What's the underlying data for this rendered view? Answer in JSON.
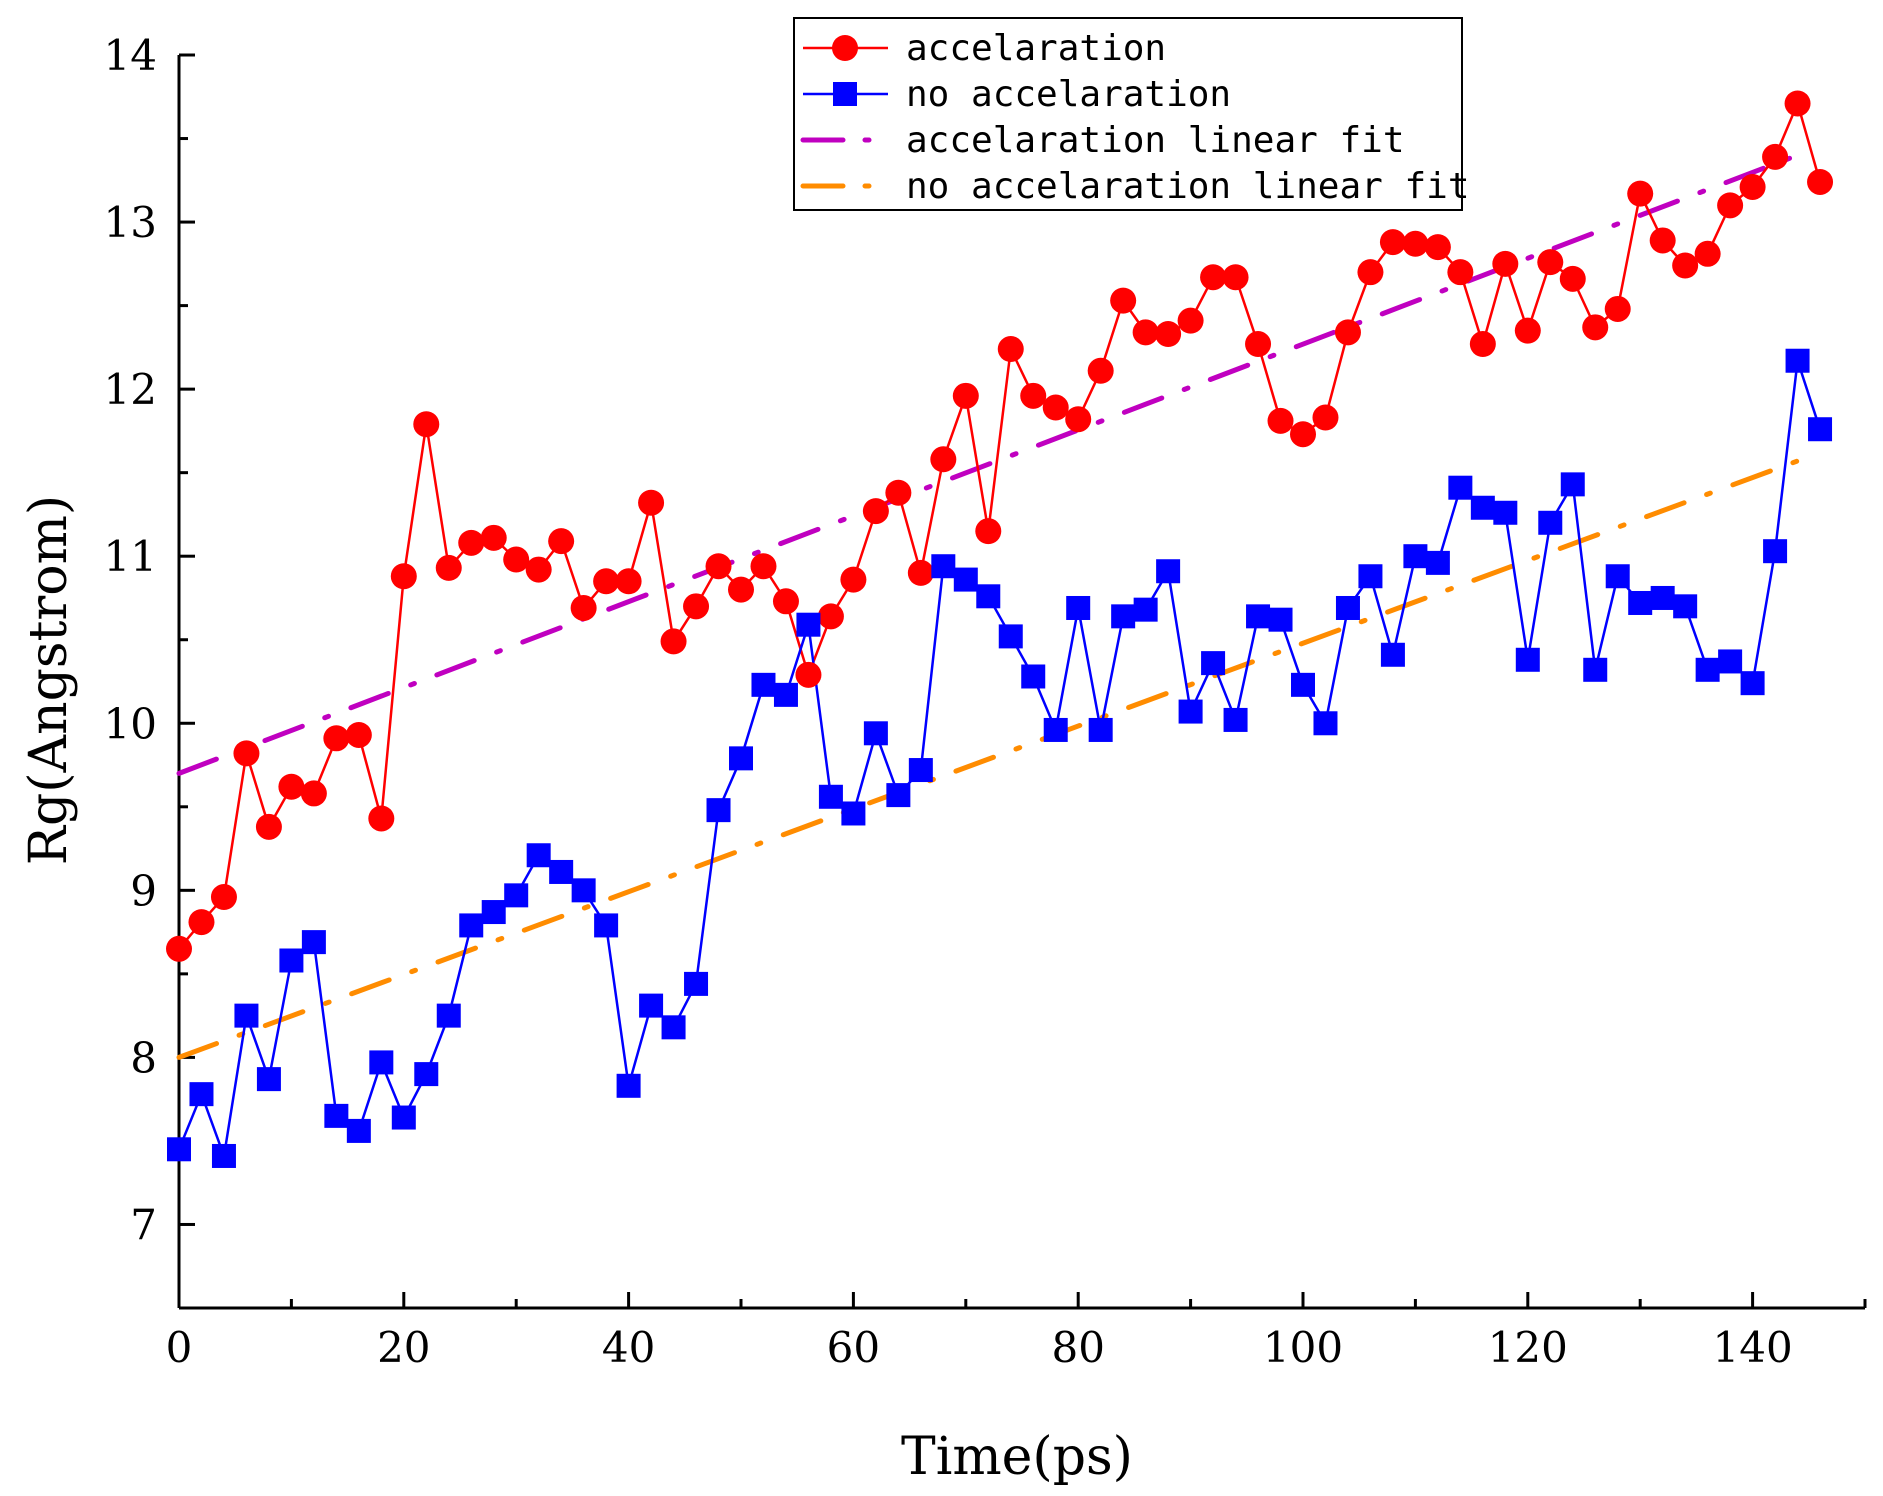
{
  "chart_data": {
    "type": "line",
    "title": "",
    "xlabel": "Time(ps)",
    "ylabel": "Rg(Angstrom)",
    "xlim": [
      0,
      150
    ],
    "ylim": [
      6.5,
      14
    ],
    "x_ticks": [
      "0",
      "20",
      "40",
      "60",
      "80",
      "100",
      "120",
      "140"
    ],
    "y_ticks": [
      "7",
      "8",
      "9",
      "10",
      "11",
      "12",
      "13",
      "14"
    ],
    "legend_position": "top-right",
    "x": [
      0,
      2,
      4,
      6,
      8,
      10,
      12,
      14,
      16,
      18,
      20,
      22,
      24,
      26,
      28,
      30,
      32,
      34,
      36,
      38,
      40,
      42,
      44,
      46,
      48,
      50,
      52,
      54,
      56,
      58,
      60,
      62,
      64,
      66,
      68,
      70,
      72,
      74,
      76,
      78,
      80,
      82,
      84,
      86,
      88,
      90,
      92,
      94,
      96,
      98,
      100,
      102,
      104,
      106,
      108,
      110,
      112,
      114,
      116,
      118,
      120,
      122,
      124,
      126,
      128,
      130,
      132,
      134,
      136,
      138,
      140,
      142,
      144,
      146
    ],
    "series": [
      {
        "name": "accelaration",
        "color": "#ff0000",
        "marker": "circle",
        "values": [
          8.65,
          8.81,
          8.96,
          9.82,
          9.38,
          9.62,
          9.58,
          9.91,
          9.93,
          9.43,
          10.88,
          11.79,
          10.93,
          11.08,
          11.11,
          10.98,
          10.92,
          11.09,
          10.69,
          10.85,
          10.85,
          11.32,
          10.49,
          10.7,
          10.94,
          10.8,
          10.94,
          10.73,
          10.29,
          10.64,
          10.86,
          11.27,
          11.38,
          10.9,
          11.58,
          11.96,
          11.15,
          12.24,
          11.96,
          11.89,
          11.82,
          12.11,
          12.53,
          12.34,
          12.33,
          12.41,
          12.67,
          12.67,
          12.27,
          11.81,
          11.73,
          11.83,
          12.34,
          12.7,
          12.88,
          12.87,
          12.85,
          12.7,
          12.27,
          12.75,
          12.35,
          12.76,
          12.66,
          12.37,
          12.48,
          13.17,
          12.89,
          12.74,
          12.81,
          13.1,
          13.21,
          13.39,
          13.71,
          13.24
        ]
      },
      {
        "name": "no accelaration",
        "color": "#0000ff",
        "marker": "square",
        "values": [
          7.45,
          7.78,
          7.41,
          8.25,
          7.87,
          8.58,
          8.69,
          7.65,
          7.56,
          7.97,
          7.64,
          7.9,
          8.25,
          8.79,
          8.87,
          8.97,
          9.21,
          9.11,
          9.0,
          8.79,
          7.83,
          8.31,
          8.18,
          8.44,
          9.48,
          9.79,
          10.23,
          10.17,
          10.59,
          9.56,
          9.46,
          9.94,
          9.57,
          9.72,
          10.94,
          10.86,
          10.76,
          10.52,
          10.28,
          9.96,
          10.69,
          9.96,
          10.64,
          10.68,
          10.91,
          10.07,
          10.36,
          10.02,
          10.64,
          10.62,
          10.23,
          10.0,
          10.69,
          10.88,
          10.41,
          11.0,
          10.96,
          11.41,
          11.29,
          11.26,
          10.38,
          11.2,
          11.43,
          10.32,
          10.88,
          10.72,
          10.75,
          10.7,
          10.32,
          10.37,
          10.24,
          11.03,
          12.17,
          11.76
        ]
      }
    ],
    "fits": [
      {
        "name": "accelaration linear fit",
        "color": "#c000c0",
        "x": [
          0,
          144
        ],
        "y": [
          9.7,
          13.4
        ]
      },
      {
        "name": "no accelaration linear fit",
        "color": "#ff8c00",
        "x": [
          0,
          144
        ],
        "y": [
          8.0,
          11.57
        ]
      }
    ]
  }
}
